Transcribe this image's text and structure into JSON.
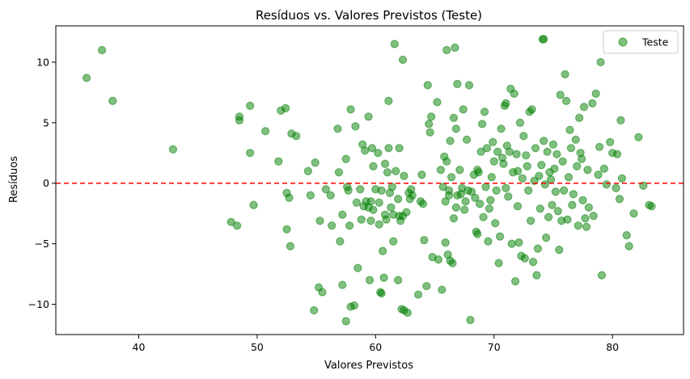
{
  "chart_data": {
    "type": "scatter",
    "title": "Resíduos vs. Valores Previstos (Teste)",
    "xlabel": "Valores Previstos",
    "ylabel": "Resíduos",
    "xlim": [
      33,
      86
    ],
    "ylim": [
      -12.5,
      13
    ],
    "xticks": [
      40,
      50,
      60,
      70,
      80
    ],
    "yticks": [
      -10,
      -5,
      0,
      5,
      10
    ],
    "grid": false,
    "legend_position": "top-right",
    "reference_line": {
      "y": 0,
      "style": "dashed",
      "color": "#ff0000"
    },
    "series": [
      {
        "name": "Teste",
        "color": "#008000",
        "points": [
          [
            35.6,
            8.7
          ],
          [
            36.9,
            11.0
          ],
          [
            37.8,
            6.8
          ],
          [
            42.9,
            2.8
          ],
          [
            47.8,
            -3.2
          ],
          [
            48.3,
            -3.5
          ],
          [
            48.5,
            5.2
          ],
          [
            48.5,
            5.5
          ],
          [
            49.4,
            6.4
          ],
          [
            49.4,
            2.5
          ],
          [
            49.7,
            -1.8
          ],
          [
            50.7,
            4.3
          ],
          [
            51.8,
            1.8
          ],
          [
            52.0,
            6.0
          ],
          [
            52.4,
            6.2
          ],
          [
            52.5,
            -0.8
          ],
          [
            52.5,
            -3.8
          ],
          [
            52.7,
            -1.2
          ],
          [
            52.8,
            -5.2
          ],
          [
            52.9,
            4.1
          ],
          [
            53.3,
            3.9
          ],
          [
            54.3,
            1.0
          ],
          [
            54.5,
            -1.0
          ],
          [
            54.9,
            1.7
          ],
          [
            54.8,
            -10.5
          ],
          [
            55.2,
            -8.6
          ],
          [
            55.3,
            -3.1
          ],
          [
            55.5,
            -9.0
          ],
          [
            55.8,
            -0.5
          ],
          [
            56.2,
            -1.0
          ],
          [
            56.3,
            -3.5
          ],
          [
            56.8,
            4.5
          ],
          [
            56.9,
            0.9
          ],
          [
            57.0,
            -4.8
          ],
          [
            57.2,
            -2.6
          ],
          [
            57.2,
            -8.4
          ],
          [
            57.5,
            2.0
          ],
          [
            57.5,
            -11.4
          ],
          [
            57.6,
            -0.3
          ],
          [
            57.7,
            -0.6
          ],
          [
            57.8,
            -3.5
          ],
          [
            57.9,
            6.1
          ],
          [
            57.9,
            -10.2
          ],
          [
            58.2,
            -10.1
          ],
          [
            58.3,
            4.7
          ],
          [
            58.4,
            -1.6
          ],
          [
            58.5,
            -7.0
          ],
          [
            58.7,
            -0.5
          ],
          [
            58.8,
            -3.0
          ],
          [
            58.9,
            3.2
          ],
          [
            59.0,
            -1.9
          ],
          [
            59.1,
            2.7
          ],
          [
            59.2,
            -1.5
          ],
          [
            59.4,
            5.5
          ],
          [
            59.4,
            -2.0
          ],
          [
            59.5,
            -8.0
          ],
          [
            59.6,
            -1.5
          ],
          [
            59.6,
            -3.1
          ],
          [
            59.7,
            2.9
          ],
          [
            59.8,
            1.4
          ],
          [
            59.8,
            -2.2
          ],
          [
            60.0,
            -0.5
          ],
          [
            60.2,
            2.5
          ],
          [
            60.3,
            -1.6
          ],
          [
            60.3,
            -3.4
          ],
          [
            60.4,
            -9.0
          ],
          [
            60.5,
            -0.6
          ],
          [
            60.5,
            -9.1
          ],
          [
            60.6,
            -5.6
          ],
          [
            60.7,
            -7.8
          ],
          [
            60.8,
            1.6
          ],
          [
            60.8,
            -2.6
          ],
          [
            60.9,
            -3.0
          ],
          [
            61.0,
            0.9
          ],
          [
            61.1,
            6.8
          ],
          [
            61.1,
            2.9
          ],
          [
            61.2,
            -0.8
          ],
          [
            61.3,
            -2.0
          ],
          [
            61.4,
            -0.3
          ],
          [
            61.5,
            -2.6
          ],
          [
            61.5,
            -4.8
          ],
          [
            61.6,
            11.5
          ],
          [
            61.7,
            1.0
          ],
          [
            61.9,
            -1.3
          ],
          [
            61.9,
            -8.0
          ],
          [
            62.0,
            2.9
          ],
          [
            62.0,
            -2.7
          ],
          [
            62.1,
            -3.1
          ],
          [
            62.2,
            -10.4
          ],
          [
            62.3,
            -2.7
          ],
          [
            62.3,
            10.2
          ],
          [
            62.4,
            0.6
          ],
          [
            62.4,
            -10.5
          ],
          [
            62.6,
            -2.4
          ],
          [
            62.7,
            -10.7
          ],
          [
            62.8,
            -0.8
          ],
          [
            62.9,
            -1.3
          ],
          [
            63.0,
            -0.5
          ],
          [
            63.1,
            -1.0
          ],
          [
            63.6,
            -9.2
          ],
          [
            63.8,
            -1.5
          ],
          [
            63.9,
            0.7
          ],
          [
            64.0,
            -1.7
          ],
          [
            64.1,
            -4.7
          ],
          [
            64.3,
            -8.5
          ],
          [
            64.4,
            8.1
          ],
          [
            64.5,
            4.9
          ],
          [
            64.6,
            4.2
          ],
          [
            64.7,
            5.5
          ],
          [
            64.8,
            -6.1
          ],
          [
            65.2,
            6.7
          ],
          [
            65.3,
            -6.3
          ],
          [
            65.5,
            1.1
          ],
          [
            65.6,
            -8.8
          ],
          [
            65.7,
            -0.3
          ],
          [
            65.8,
            2.2
          ],
          [
            65.9,
            -1.5
          ],
          [
            65.9,
            -4.9
          ],
          [
            66.0,
            11.0
          ],
          [
            66.0,
            1.8
          ],
          [
            66.1,
            -5.9
          ],
          [
            66.2,
            -0.6
          ],
          [
            66.2,
            -1.0
          ],
          [
            66.3,
            -6.4
          ],
          [
            66.3,
            3.5
          ],
          [
            66.4,
            0.5
          ],
          [
            66.5,
            -6.6
          ],
          [
            66.6,
            5.4
          ],
          [
            66.6,
            -2.9
          ],
          [
            66.7,
            11.2
          ],
          [
            66.8,
            4.5
          ],
          [
            66.8,
            -2.0
          ],
          [
            66.9,
            -1.0
          ],
          [
            66.9,
            8.2
          ],
          [
            67.1,
            1.1
          ],
          [
            67.2,
            -0.9
          ],
          [
            67.3,
            -0.4
          ],
          [
            67.4,
            6.1
          ],
          [
            67.5,
            -2.2
          ],
          [
            67.6,
            -1.5
          ],
          [
            67.7,
            3.6
          ],
          [
            67.8,
            -0.6
          ],
          [
            67.9,
            8.1
          ],
          [
            68.0,
            -11.3
          ],
          [
            68.1,
            -0.7
          ],
          [
            68.3,
            0.7
          ],
          [
            68.4,
            -1.2
          ],
          [
            68.5,
            -4.0
          ],
          [
            68.6,
            -4.2
          ],
          [
            68.6,
            1.1
          ],
          [
            68.7,
            0.9
          ],
          [
            68.8,
            -1.7
          ],
          [
            68.9,
            2.6
          ],
          [
            69.0,
            4.9
          ],
          [
            69.1,
            -2.8
          ],
          [
            69.2,
            5.9
          ],
          [
            69.3,
            -0.3
          ],
          [
            69.4,
            2.9
          ],
          [
            69.5,
            -4.8
          ],
          [
            69.6,
            -2.1
          ],
          [
            69.7,
            -1.4
          ],
          [
            69.8,
            0.5
          ],
          [
            69.9,
            3.4
          ],
          [
            70.0,
            1.8
          ],
          [
            70.1,
            -3.3
          ],
          [
            70.2,
            -0.6
          ],
          [
            70.3,
            2.6
          ],
          [
            70.4,
            -6.6
          ],
          [
            70.5,
            -4.4
          ],
          [
            70.6,
            4.5
          ],
          [
            70.7,
            2.1
          ],
          [
            70.8,
            1.6
          ],
          [
            70.9,
            6.4
          ],
          [
            71.0,
            -0.4
          ],
          [
            71.0,
            6.6
          ],
          [
            71.1,
            3.1
          ],
          [
            71.2,
            -1.1
          ],
          [
            71.3,
            2.6
          ],
          [
            71.4,
            7.8
          ],
          [
            71.5,
            -5.0
          ],
          [
            71.6,
            0.9
          ],
          [
            71.7,
            7.4
          ],
          [
            71.8,
            -8.1
          ],
          [
            71.9,
            2.4
          ],
          [
            72.0,
            1.0
          ],
          [
            72.0,
            -1.9
          ],
          [
            72.1,
            -4.9
          ],
          [
            72.2,
            5.0
          ],
          [
            72.3,
            -6.0
          ],
          [
            72.4,
            0.4
          ],
          [
            72.5,
            3.9
          ],
          [
            72.6,
            -6.2
          ],
          [
            72.7,
            2.3
          ],
          [
            72.8,
            1.4
          ],
          [
            72.9,
            -0.6
          ],
          [
            73.0,
            5.9
          ],
          [
            73.1,
            -3.1
          ],
          [
            73.2,
            6.1
          ],
          [
            73.3,
            -6.5
          ],
          [
            73.4,
            0.2
          ],
          [
            73.5,
            2.9
          ],
          [
            73.6,
            -7.6
          ],
          [
            73.7,
            -5.4
          ],
          [
            73.8,
            0.6
          ],
          [
            73.9,
            -2.1
          ],
          [
            74.0,
            1.5
          ],
          [
            74.1,
            11.9
          ],
          [
            74.2,
            11.9
          ],
          [
            74.2,
            3.5
          ],
          [
            74.3,
            -0.1
          ],
          [
            74.4,
            -4.5
          ],
          [
            74.5,
            2.6
          ],
          [
            74.6,
            -2.8
          ],
          [
            74.7,
            0.9
          ],
          [
            74.8,
            0.3
          ],
          [
            74.9,
            -1.8
          ],
          [
            75.0,
            3.2
          ],
          [
            75.1,
            1.2
          ],
          [
            75.2,
            -0.7
          ],
          [
            75.3,
            2.4
          ],
          [
            75.4,
            -2.3
          ],
          [
            75.5,
            -5.5
          ],
          [
            75.6,
            7.3
          ],
          [
            75.7,
            -3.1
          ],
          [
            75.8,
            1.8
          ],
          [
            75.9,
            -0.6
          ],
          [
            76.0,
            9.0
          ],
          [
            76.1,
            6.8
          ],
          [
            76.2,
            -3.0
          ],
          [
            76.3,
            0.5
          ],
          [
            76.4,
            4.4
          ],
          [
            76.5,
            2.9
          ],
          [
            76.6,
            -1.8
          ],
          [
            76.7,
            -0.9
          ],
          [
            76.9,
            3.6
          ],
          [
            77.0,
            1.4
          ],
          [
            77.1,
            -3.5
          ],
          [
            77.2,
            5.4
          ],
          [
            77.3,
            2.5
          ],
          [
            77.4,
            2.0
          ],
          [
            77.5,
            -1.4
          ],
          [
            77.6,
            6.3
          ],
          [
            77.7,
            -2.9
          ],
          [
            77.8,
            -3.6
          ],
          [
            77.9,
            1.1
          ],
          [
            78.0,
            -2.0
          ],
          [
            78.3,
            6.6
          ],
          [
            78.4,
            -2.7
          ],
          [
            78.6,
            7.4
          ],
          [
            78.8,
            0.7
          ],
          [
            78.9,
            3.0
          ],
          [
            79.0,
            10.0
          ],
          [
            79.1,
            -7.6
          ],
          [
            79.3,
            1.2
          ],
          [
            79.5,
            -0.1
          ],
          [
            79.8,
            3.4
          ],
          [
            80.0,
            2.5
          ],
          [
            80.3,
            -0.4
          ],
          [
            80.4,
            2.4
          ],
          [
            80.6,
            -1.3
          ],
          [
            80.7,
            5.2
          ],
          [
            80.8,
            0.4
          ],
          [
            81.2,
            -4.3
          ],
          [
            81.4,
            -5.2
          ],
          [
            81.8,
            -2.5
          ],
          [
            82.2,
            3.8
          ],
          [
            82.6,
            -0.2
          ],
          [
            83.1,
            -1.8
          ],
          [
            83.3,
            -1.9
          ]
        ]
      }
    ]
  }
}
